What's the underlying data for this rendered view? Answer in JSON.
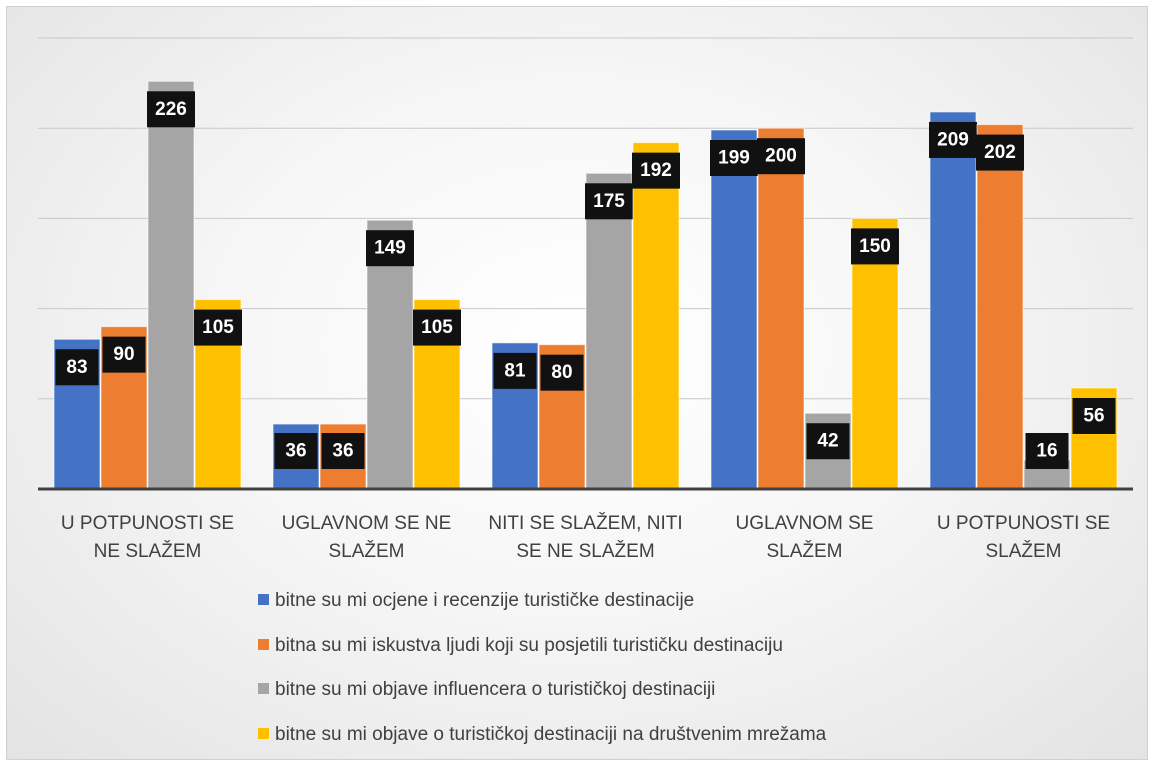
{
  "chart_data": {
    "type": "bar",
    "categories": [
      "U POTPUNOSTI SE NE SLAŽEM",
      "UGLAVNOM SE NE SLAŽEM",
      "NITI SE SLAŽEM, NITI SE NE SLAŽEM",
      "UGLAVNOM SE SLAŽEM",
      "U POTPUNOSTI SE SLAŽEM"
    ],
    "series": [
      {
        "name": "bitne su mi ocjene i recenzije turističke destinacije",
        "color": "#4472c4",
        "values": [
          83,
          36,
          81,
          199,
          209
        ]
      },
      {
        "name": "bitna su mi iskustva ljudi koji su posjetili turističku destinaciju",
        "color": "#ed7d31",
        "values": [
          90,
          36,
          80,
          200,
          202
        ]
      },
      {
        "name": "bitne su mi objave influencera o turističkoj destinaciji",
        "color": "#a5a5a5",
        "values": [
          226,
          149,
          175,
          42,
          16
        ]
      },
      {
        "name": "bitne su mi objave o turističkoj destinaciji na društvenim mrežama",
        "color": "#ffc000",
        "values": [
          105,
          105,
          192,
          150,
          56
        ]
      }
    ],
    "ylim": [
      0,
      250
    ],
    "yticks": [
      0,
      50,
      100,
      150,
      200,
      250
    ],
    "grid": true,
    "legend": "bottom"
  }
}
